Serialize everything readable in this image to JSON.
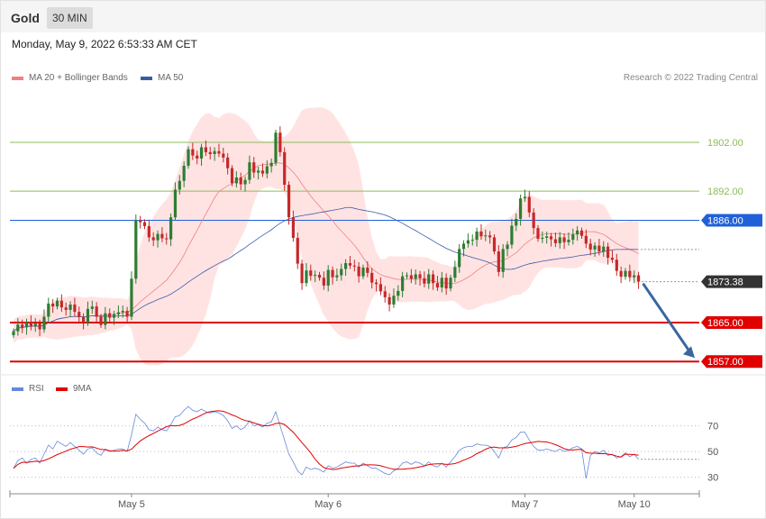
{
  "header": {
    "symbol": "Gold",
    "timeframe": "30 MIN"
  },
  "timestamp": "Monday, May 9, 2022 6:53:33 AM CET",
  "legend": {
    "bollinger": "MA 20 + Bollinger Bands",
    "ma50": "MA 50",
    "rsi": "RSI",
    "rsi_ma": "9MA"
  },
  "credit": "Research © 2022 Trading Central",
  "colors": {
    "up": "#2e7d32",
    "down": "#c62828",
    "bollinger": "#f08080",
    "ma50": "#3a5ba8",
    "resistance": "#8dbb5a",
    "pivot": "#2060d8",
    "support": "#e00000",
    "current": "#333333",
    "rsi": "#6688dd",
    "rsi_ma": "#e00000",
    "arrow": "#3a66a0"
  },
  "chart_data": [
    {
      "type": "candlestick",
      "x_ticks": [
        "May 5",
        "May 6",
        "May 7",
        "May 10"
      ],
      "y_range": [
        1855,
        1912
      ],
      "levels": [
        {
          "value": 1902.0,
          "label": "1902.00",
          "kind": "resistance"
        },
        {
          "value": 1892.0,
          "label": "1892.00",
          "kind": "resistance"
        },
        {
          "value": 1886.0,
          "label": "1886.00",
          "kind": "pivot"
        },
        {
          "value": 1873.38,
          "label": "1873.38",
          "kind": "current"
        },
        {
          "value": 1865.0,
          "label": "1865.00",
          "kind": "support"
        },
        {
          "value": 1857.0,
          "label": "1857.00",
          "kind": "support"
        }
      ],
      "close": [
        1863.2,
        1864.6,
        1864.0,
        1865.1,
        1864.2,
        1864.8,
        1863.6,
        1866.2,
        1868.9,
        1868.3,
        1869.5,
        1868.1,
        1867.6,
        1868.7,
        1867.2,
        1866.1,
        1865.0,
        1867.8,
        1868.3,
        1866.2,
        1864.5,
        1866.9,
        1866.0,
        1866.7,
        1867.1,
        1867.4,
        1866.2,
        1874.0,
        1886.0,
        1885.6,
        1884.8,
        1882.5,
        1881.9,
        1883.2,
        1882.3,
        1882.1,
        1886.6,
        1892.3,
        1894.1,
        1897.2,
        1900.6,
        1899.3,
        1898.7,
        1901.0,
        1900.0,
        1899.6,
        1900.2,
        1899.7,
        1898.9,
        1896.7,
        1893.6,
        1894.8,
        1893.4,
        1894.3,
        1897.9,
        1895.8,
        1896.2,
        1895.6,
        1897.1,
        1897.8,
        1904.0,
        1900.0,
        1893.3,
        1886.6,
        1882.4,
        1877.1,
        1873.1,
        1875.7,
        1874.6,
        1874.8,
        1874.2,
        1872.6,
        1875.8,
        1874.3,
        1874.7,
        1876.0,
        1877.2,
        1876.7,
        1876.5,
        1874.5,
        1876.3,
        1875.2,
        1873.2,
        1872.9,
        1871.4,
        1870.2,
        1868.7,
        1870.5,
        1871.5,
        1874.5,
        1874.7,
        1874.0,
        1874.9,
        1874.1,
        1873.0,
        1874.9,
        1873.1,
        1872.2,
        1874.2,
        1872.0,
        1874.2,
        1876.4,
        1880.1,
        1881.2,
        1881.9,
        1882.0,
        1883.7,
        1882.7,
        1882.9,
        1882.5,
        1879.6,
        1875.4,
        1880.1,
        1881.0,
        1884.9,
        1886.3,
        1890.5,
        1890.8,
        1887.6,
        1884.4,
        1882.2,
        1882.4,
        1882.7,
        1882.1,
        1881.3,
        1882.5,
        1881.5,
        1882.0,
        1883.1,
        1883.9,
        1882.8,
        1881.2,
        1880.0,
        1880.8,
        1879.6,
        1880.6,
        1878.3,
        1877.9,
        1875.6,
        1874.4,
        1875.6,
        1874.3,
        1874.7,
        1873.4
      ],
      "rsi": [
        37,
        43,
        45,
        41,
        44,
        45,
        41,
        48,
        55,
        52,
        58,
        56,
        54,
        57,
        54,
        51,
        48,
        52,
        53,
        49,
        47,
        52,
        50,
        51,
        52,
        52,
        50,
        63,
        79,
        75,
        72,
        67,
        66,
        69,
        67,
        66,
        71,
        77,
        78,
        82,
        85,
        82,
        81,
        83,
        81,
        80,
        81,
        80,
        78,
        74,
        68,
        70,
        67,
        69,
        74,
        70,
        71,
        69,
        72,
        73,
        81,
        70,
        59,
        48,
        42,
        35,
        32,
        38,
        36,
        37,
        36,
        34,
        39,
        37,
        38,
        40,
        42,
        41,
        41,
        38,
        41,
        39,
        37,
        37,
        35,
        33,
        32,
        35,
        37,
        41,
        42,
        40,
        42,
        41,
        39,
        42,
        39,
        38,
        41,
        38,
        42,
        46,
        51,
        53,
        54,
        54,
        56,
        55,
        55,
        54,
        50,
        45,
        53,
        54,
        59,
        61,
        65,
        65,
        59,
        54,
        51,
        51,
        52,
        51,
        50,
        52,
        50,
        51,
        53,
        54,
        52,
        29,
        47,
        50,
        49,
        51,
        47,
        48,
        45,
        46,
        49,
        46,
        48,
        44
      ],
      "rsi_ticks": [
        70,
        50,
        30
      ]
    }
  ]
}
